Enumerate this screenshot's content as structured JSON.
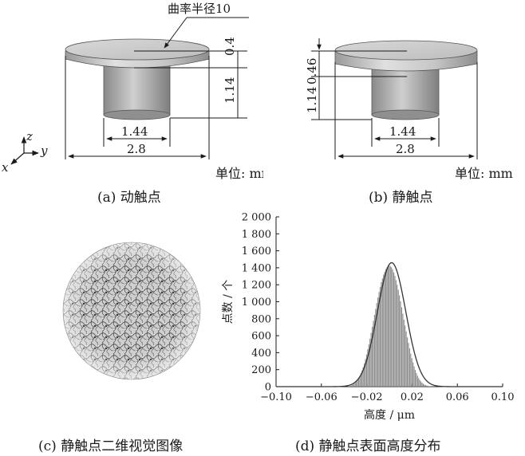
{
  "figure": {
    "panel_a": {
      "caption": "(a)  动触点",
      "radius_note": "曲率半径10",
      "dim_cap_thickness": "0.4",
      "dim_stem_height": "1.14",
      "dim_stem_diameter": "1.44",
      "dim_cap_diameter": "2.8",
      "unit": "单位: mm",
      "axis_x": "x",
      "axis_y": "y",
      "axis_z": "z"
    },
    "panel_b": {
      "caption": "(b)  静触点",
      "dim_cap_thickness": "0.46",
      "dim_stem_height": "1.14",
      "dim_stem_diameter": "1.44",
      "dim_cap_diameter": "2.8",
      "unit": "单位: mm"
    },
    "panel_c": {
      "caption": "(c)  静触点二维视觉图像"
    },
    "panel_d": {
      "caption": "(d)  静触点表面高度分布"
    }
  },
  "chart_data": {
    "type": "bar",
    "xlabel": "高度 / μm",
    "ylabel": "点数 / 个",
    "xlim": [
      -0.1,
      0.1
    ],
    "ylim": [
      0,
      2000
    ],
    "x_ticks": [
      "−0.10",
      "−0.06",
      "−0.02",
      "0.02",
      "0.06",
      "0.10"
    ],
    "x_tick_values": [
      -0.1,
      -0.06,
      -0.02,
      0.02,
      0.06,
      0.1
    ],
    "y_ticks": [
      "0",
      "200",
      "400",
      "600",
      "800",
      "1 000",
      "1 200",
      "1 400",
      "1 600",
      "1 800",
      "2 000"
    ],
    "y_tick_values": [
      0,
      200,
      400,
      600,
      800,
      1000,
      1200,
      1400,
      1600,
      1800,
      2000
    ],
    "histogram": {
      "bin_width": 0.001,
      "x": [
        -0.036,
        -0.035,
        -0.034,
        -0.033,
        -0.032,
        -0.031,
        -0.03,
        -0.029,
        -0.028,
        -0.027,
        -0.026,
        -0.025,
        -0.024,
        -0.023,
        -0.022,
        -0.021,
        -0.02,
        -0.019,
        -0.018,
        -0.017,
        -0.016,
        -0.015,
        -0.014,
        -0.013,
        -0.012,
        -0.011,
        -0.01,
        -0.009,
        -0.008,
        -0.007,
        -0.006,
        -0.005,
        -0.004,
        -0.003,
        -0.002,
        -0.001,
        0.0,
        0.001,
        0.002,
        0.003,
        0.004,
        0.005,
        0.006,
        0.007,
        0.008,
        0.009,
        0.01,
        0.011,
        0.012,
        0.013,
        0.014,
        0.015,
        0.016,
        0.017,
        0.018,
        0.019,
        0.02,
        0.021,
        0.022,
        0.023,
        0.024,
        0.025,
        0.026,
        0.027,
        0.028,
        0.029,
        0.03,
        0.031,
        0.032,
        0.033,
        0.034,
        0.035,
        0.036,
        0.037,
        0.038,
        0.039,
        0.04,
        0.041,
        0.042,
        0.043,
        0.044,
        0.045,
        0.046
      ],
      "values": [
        5,
        8,
        12,
        18,
        25,
        34,
        46,
        60,
        78,
        100,
        126,
        156,
        190,
        230,
        275,
        325,
        380,
        440,
        500,
        565,
        635,
        705,
        775,
        845,
        915,
        985,
        1050,
        1115,
        1175,
        1230,
        1275,
        1320,
        1355,
        1385,
        1405,
        1420,
        1425,
        1420,
        1405,
        1380,
        1345,
        1305,
        1255,
        1200,
        1140,
        1075,
        1005,
        935,
        860,
        790,
        720,
        650,
        580,
        515,
        450,
        390,
        335,
        285,
        238,
        196,
        160,
        128,
        100,
        78,
        60,
        46,
        34,
        25,
        18,
        13,
        9,
        6,
        4,
        3,
        2,
        1,
        1,
        1,
        0,
        0,
        0,
        0,
        0
      ]
    },
    "fit_curve": {
      "type": "normal",
      "mean": 0.002,
      "sd": 0.0125,
      "peak": 1460
    },
    "grid": false,
    "legend": "none"
  }
}
